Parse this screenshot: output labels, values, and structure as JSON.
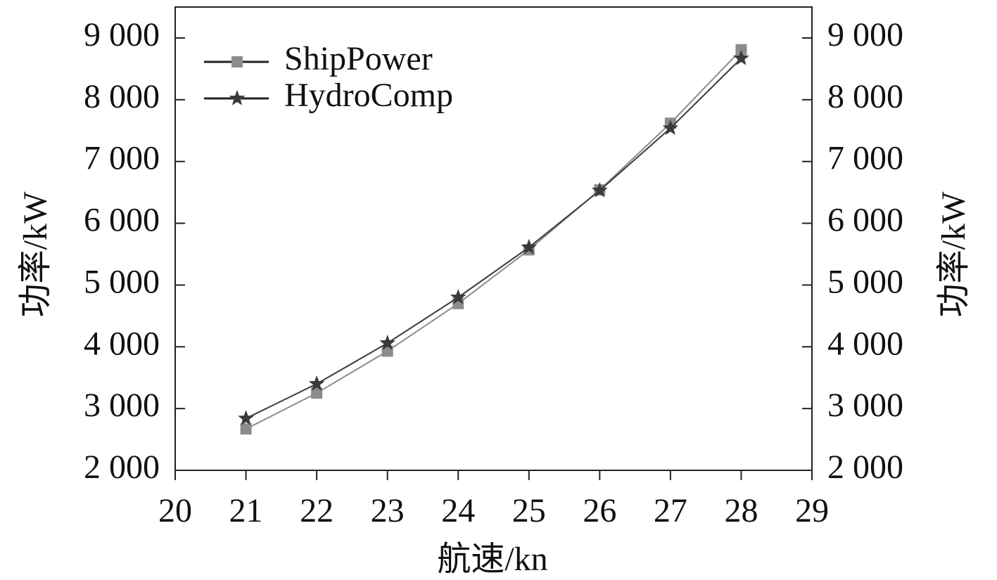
{
  "chart_data": {
    "type": "line",
    "xlabel": "航速/kn",
    "ylabel": "功率/kW",
    "y2label": "功率/kW",
    "x": [
      21,
      22,
      23,
      24,
      25,
      26,
      27,
      28
    ],
    "series": [
      {
        "name": "ShipPower",
        "color": "#8c8c8c",
        "marker": "square",
        "values": [
          2670,
          3250,
          3930,
          4700,
          5570,
          6540,
          7620,
          8810
        ]
      },
      {
        "name": "HydroComp",
        "color": "#3a3a3a",
        "marker": "star",
        "values": [
          2840,
          3400,
          4060,
          4800,
          5610,
          6530,
          7540,
          8670
        ]
      }
    ],
    "xlim": [
      20,
      29
    ],
    "xticks": [
      20,
      21,
      22,
      23,
      24,
      25,
      26,
      27,
      28,
      29
    ],
    "ylim": [
      2000,
      9000
    ],
    "yticks": [
      {
        "value": 2000,
        "label": "2 000"
      },
      {
        "value": 3000,
        "label": "3 000"
      },
      {
        "value": 4000,
        "label": "4 000"
      },
      {
        "value": 5000,
        "label": "5 000"
      },
      {
        "value": 6000,
        "label": "6 000"
      },
      {
        "value": 7000,
        "label": "7 000"
      },
      {
        "value": 8000,
        "label": "8 000"
      },
      {
        "value": 9000,
        "label": "9 000"
      }
    ],
    "y2lim": [
      2000,
      9000
    ],
    "y2ticks": [
      {
        "value": 2000,
        "label": "2 000"
      },
      {
        "value": 3000,
        "label": "3 000"
      },
      {
        "value": 4000,
        "label": "4 000"
      },
      {
        "value": 5000,
        "label": "5 000"
      },
      {
        "value": 6000,
        "label": "6 000"
      },
      {
        "value": 7000,
        "label": "7 000"
      },
      {
        "value": 8000,
        "label": "8 000"
      },
      {
        "value": 9000,
        "label": "9 000"
      }
    ],
    "legend": "upper left",
    "grid": false
  }
}
